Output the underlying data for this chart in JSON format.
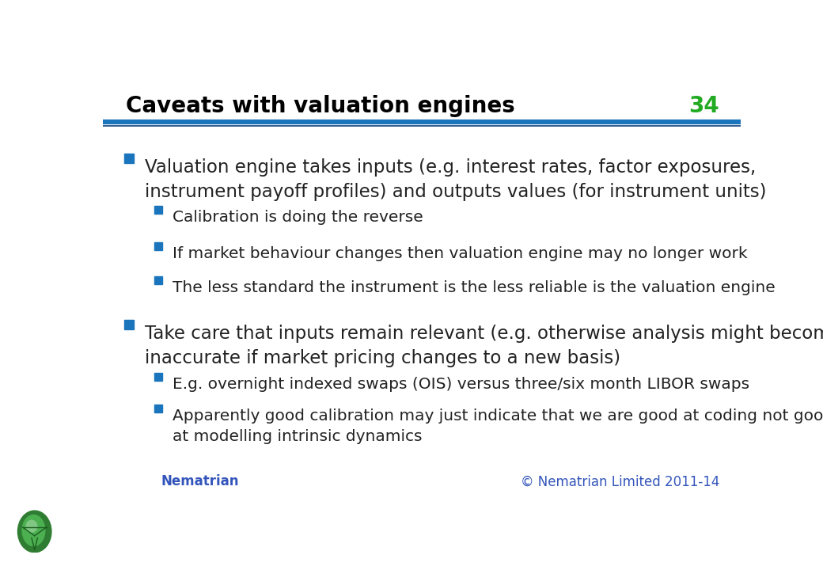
{
  "title": "Caveats with valuation engines",
  "slide_number": "34",
  "title_color": "#000000",
  "title_fontsize": 20,
  "slide_number_color": "#22AA22",
  "background_color": "#FFFFFF",
  "header_line_color1": "#1B75BC",
  "header_line_color2": "#1B75BC",
  "footer_text_left": "Nematrian",
  "footer_text_right": "© Nematrian Limited 2011-14",
  "footer_color": "#3355BB",
  "bullet_color": "#1B75BC",
  "text_color": "#222222",
  "bullet_items": [
    {
      "level": 1,
      "text": "Valuation engine takes inputs (e.g. interest rates, factor exposures,\ninstrument payoff profiles) and outputs values (for instrument units)",
      "fontsize": 16.5
    },
    {
      "level": 2,
      "text": "Calibration is doing the reverse",
      "fontsize": 14.5
    },
    {
      "level": 2,
      "text": "If market behaviour changes then valuation engine may no longer work",
      "fontsize": 14.5
    },
    {
      "level": 2,
      "text": "The less standard the instrument is the less reliable is the valuation engine",
      "fontsize": 14.5
    },
    {
      "level": 1,
      "text": "Take care that inputs remain relevant (e.g. otherwise analysis might become\ninaccurate if market pricing changes to a new basis)",
      "fontsize": 16.5
    },
    {
      "level": 2,
      "text": "E.g. overnight indexed swaps (OIS) versus three/six month LIBOR swaps",
      "fontsize": 14.5
    },
    {
      "level": 2,
      "text": "Apparently good calibration may just indicate that we are good at coding not good\nat modelling intrinsic dynamics",
      "fontsize": 14.5
    }
  ]
}
